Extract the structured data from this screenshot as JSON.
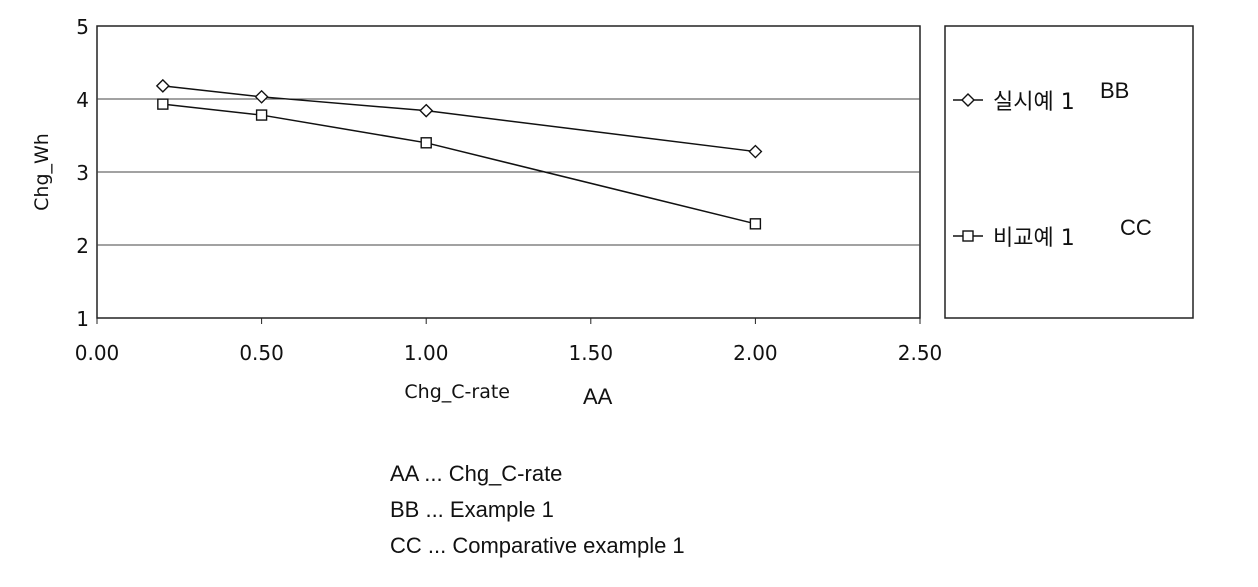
{
  "chart_data": {
    "type": "line",
    "xlabel": "Chg_C-rate",
    "xlabel_code": "AA",
    "ylabel": "Chg_Wh",
    "xlim": [
      0.0,
      2.5
    ],
    "ylim": [
      1,
      5
    ],
    "x_ticks": [
      "0.00",
      "0.50",
      "1.00",
      "1.50",
      "2.00",
      "2.50"
    ],
    "y_ticks": [
      "1",
      "2",
      "3",
      "4",
      "5"
    ],
    "grid": "horizontal",
    "legend_position": "right",
    "series": [
      {
        "name": "실시예 1",
        "code": "BB",
        "marker": "diamond",
        "x": [
          0.2,
          0.5,
          1.0,
          2.0
        ],
        "y": [
          4.18,
          4.03,
          3.84,
          3.28
        ]
      },
      {
        "name": "비교예 1",
        "code": "CC",
        "marker": "square",
        "x": [
          0.2,
          0.5,
          1.0,
          2.0
        ],
        "y": [
          3.93,
          3.78,
          3.4,
          2.29
        ]
      }
    ]
  },
  "notes": [
    "AA ... Chg_C-rate",
    "BB ... Example 1",
    "CC ... Comparative example 1"
  ]
}
